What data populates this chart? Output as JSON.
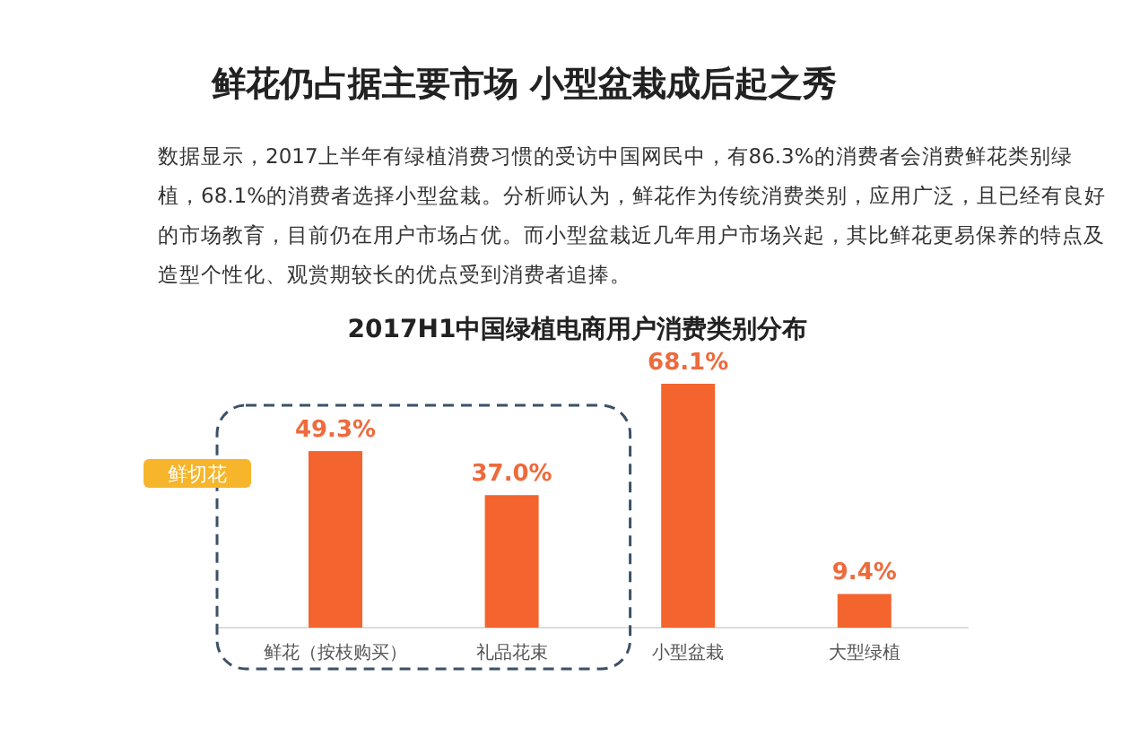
{
  "chart_data": {
    "type": "bar",
    "title": "2017H1中国绿植电商用户消费类别分布",
    "categories": [
      "鲜花（按枝购买）",
      "礼品花束",
      "小型盆栽",
      "大型绿植"
    ],
    "values": [
      49.3,
      37.0,
      68.1,
      9.4
    ],
    "value_labels": [
      "49.3%",
      "37.0%",
      "68.1%",
      "9.4%"
    ],
    "color": "#f4642e",
    "annotations": [
      "鲜花仍占据主要市场 小型盆栽成后起之秀",
      "数据显示，2017上半年有绿植消费习惯的受访中国网民中，有86.3%的消费者会消费鲜花类别绿植，68.1%的消费者选择小型盆栽。分析师认为，鲜花作为传统消费类别，应用广泛，且已经有良好的市场教育，目前仍在用户市场占优。而小型盆栽近几年用户市场兴起，其比鲜花更易保养的特点及造型个性化、观赏期较长的优点受到消费者追捧。",
      "鲜切花"
    ]
  }
}
